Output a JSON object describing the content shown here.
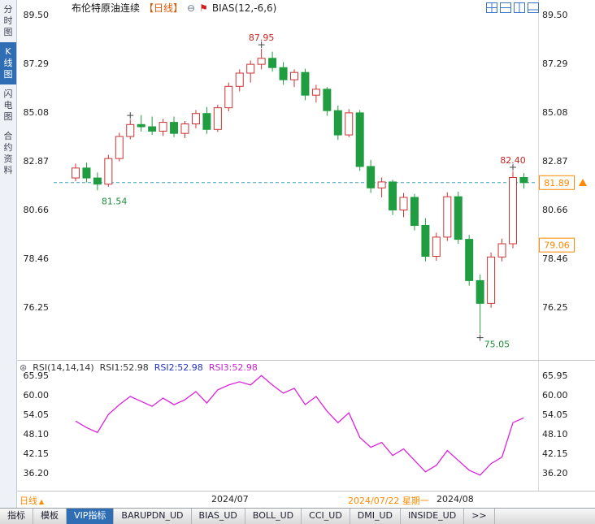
{
  "colors": {
    "accent": "#2f6eb5",
    "up": "#cc3333",
    "down": "#1f9d40",
    "rsi_line": "#dd22dd",
    "highlight": "#ff8800",
    "dashed_line": "#3a9fc4",
    "annotation_red": "#cc2222",
    "annotation_green": "#1e8e3e"
  },
  "icons": {
    "collapse": "⊖",
    "tool": "⚑",
    "settings": "⊛",
    "caret": "▲"
  },
  "sidebar": {
    "items": [
      {
        "name": "time-chart",
        "label": "分时图",
        "selected": false
      },
      {
        "name": "kline-chart",
        "label": "K线图",
        "selected": true
      },
      {
        "name": "lightning-chart",
        "label": "闪电图",
        "selected": false
      },
      {
        "name": "contract-info",
        "label": "合约资料",
        "selected": false
      }
    ]
  },
  "header": {
    "title": "布伦特原油连续",
    "period": "【日线】",
    "indicator": "BIAS(12,-6,6)"
  },
  "layout_icons": [
    {
      "name": "chart-layout-icon-1",
      "kind": "quad"
    },
    {
      "name": "chart-layout-icon-2",
      "kind": "horiz"
    },
    {
      "name": "chart-layout-icon-3",
      "kind": "vert"
    },
    {
      "name": "chart-layout-icon-4",
      "kind": "main-bottom"
    }
  ],
  "rsi": {
    "params": "RSI(14,14,14)",
    "r1": "RSI1:52.98",
    "r2": "RSI2:52.98",
    "r3": "RSI3:52.98"
  },
  "time_axis": {
    "period_label": "日线",
    "t1": "2024/07",
    "t2": "2024/07/22 星期一",
    "t3": "2024/08"
  },
  "tabs": [
    {
      "name": "tab-indicators",
      "label": "指标",
      "selected": false
    },
    {
      "name": "tab-templates",
      "label": "模板",
      "selected": false
    },
    {
      "name": "tab-vip-indicators",
      "label": "VIP指标",
      "selected": true
    },
    {
      "name": "tab-barupdn-ud",
      "label": "BARUPDN_UD",
      "selected": false
    },
    {
      "name": "tab-bias-ud",
      "label": "BIAS_UD",
      "selected": false
    },
    {
      "name": "tab-boll-ud",
      "label": "BOLL_UD",
      "selected": false
    },
    {
      "name": "tab-cci-ud",
      "label": "CCI_UD",
      "selected": false
    },
    {
      "name": "tab-dmi-ud",
      "label": "DMI_UD",
      "selected": false
    },
    {
      "name": "tab-inside-ud",
      "label": "INSIDE_UD",
      "selected": false
    },
    {
      "name": "tab-more",
      "label": ">>",
      "selected": false
    }
  ],
  "chart_data": [
    {
      "type": "candlestick",
      "title": "布伦特原油连续 日线",
      "y_ticks": [
        89.5,
        87.29,
        85.08,
        82.87,
        80.66,
        78.46,
        76.25
      ],
      "ylim": [
        75.0,
        90.0
      ],
      "current_price": "81.89",
      "cost_price": "79.06",
      "candles": [
        [
          82.1,
          82.75,
          81.95,
          82.55
        ],
        [
          82.55,
          82.8,
          81.9,
          82.1
        ],
        [
          82.1,
          82.35,
          81.54,
          81.82
        ],
        [
          81.82,
          83.15,
          81.7,
          82.98
        ],
        [
          82.98,
          84.15,
          82.85,
          83.98
        ],
        [
          83.98,
          84.75,
          83.85,
          84.52
        ],
        [
          84.52,
          84.95,
          84.2,
          84.42
        ],
        [
          84.42,
          84.88,
          84.05,
          84.22
        ],
        [
          84.22,
          84.78,
          84.0,
          84.62
        ],
        [
          84.62,
          84.88,
          83.95,
          84.12
        ],
        [
          84.12,
          84.68,
          83.9,
          84.55
        ],
        [
          84.55,
          85.18,
          84.35,
          85.02
        ],
        [
          85.02,
          85.32,
          84.1,
          84.3
        ],
        [
          84.3,
          85.42,
          84.18,
          85.28
        ],
        [
          85.28,
          86.42,
          85.12,
          86.25
        ],
        [
          86.25,
          87.02,
          86.02,
          86.85
        ],
        [
          86.85,
          87.42,
          86.42,
          87.25
        ],
        [
          87.25,
          87.95,
          87.02,
          87.52
        ],
        [
          87.52,
          87.82,
          86.92,
          87.1
        ],
        [
          87.1,
          87.35,
          86.32,
          86.55
        ],
        [
          86.55,
          87.02,
          86.22,
          86.88
        ],
        [
          86.88,
          87.05,
          85.62,
          85.85
        ],
        [
          85.85,
          86.32,
          85.52,
          86.12
        ],
        [
          86.12,
          86.22,
          84.92,
          85.15
        ],
        [
          85.15,
          85.38,
          83.82,
          84.05
        ],
        [
          84.05,
          85.22,
          83.95,
          85.05
        ],
        [
          85.05,
          85.18,
          82.42,
          82.62
        ],
        [
          82.62,
          82.92,
          81.42,
          81.65
        ],
        [
          81.65,
          82.12,
          81.22,
          81.92
        ],
        [
          81.92,
          82.02,
          80.42,
          80.65
        ],
        [
          80.65,
          81.42,
          80.32,
          81.22
        ],
        [
          81.22,
          81.38,
          79.72,
          79.95
        ],
        [
          79.95,
          80.28,
          78.32,
          78.55
        ],
        [
          78.55,
          79.62,
          78.35,
          79.42
        ],
        [
          79.42,
          81.45,
          79.25,
          81.25
        ],
        [
          81.25,
          81.48,
          79.12,
          79.32
        ],
        [
          79.32,
          79.52,
          77.22,
          77.45
        ],
        [
          77.45,
          77.72,
          75.05,
          76.42
        ],
        [
          76.42,
          78.72,
          76.22,
          78.52
        ],
        [
          78.52,
          79.35,
          78.32,
          79.12
        ],
        [
          79.12,
          82.4,
          78.92,
          82.12
        ],
        [
          82.12,
          82.32,
          81.62,
          81.89
        ]
      ],
      "markers": [
        {
          "index": 5,
          "pos": "high"
        },
        {
          "index": 17,
          "pos": "high"
        },
        {
          "index": 37,
          "pos": "low"
        },
        {
          "index": 40,
          "pos": "high"
        }
      ],
      "annotations": [
        {
          "text": "87.95",
          "index": 17,
          "pos": "high",
          "color": "#cc2222"
        },
        {
          "text": "82.40",
          "index": 40,
          "pos": "high",
          "color": "#cc2222"
        },
        {
          "text": "81.54",
          "index": 2,
          "pos": "low",
          "color": "#1e8e3e"
        },
        {
          "text": "75.05",
          "index": 37,
          "pos": "low",
          "color": "#1e8e3e"
        }
      ]
    },
    {
      "type": "line",
      "name": "RSI",
      "y_ticks": [
        65.95,
        60.0,
        54.05,
        48.1,
        42.15,
        36.2
      ],
      "series": [
        {
          "name": "RSI3",
          "color": "#dd22dd",
          "values": [
            52,
            50,
            48.5,
            54,
            57,
            59.5,
            58,
            56.5,
            59,
            57,
            58.5,
            61,
            57.5,
            61.5,
            63,
            64,
            63,
            65.9,
            63,
            60.5,
            62,
            57,
            59.5,
            55,
            51.5,
            54.5,
            47,
            44,
            45.5,
            41.5,
            43.5,
            40,
            36.5,
            38.5,
            43,
            40,
            37,
            35.5,
            39,
            41,
            51.5,
            52.98
          ]
        }
      ]
    }
  ]
}
